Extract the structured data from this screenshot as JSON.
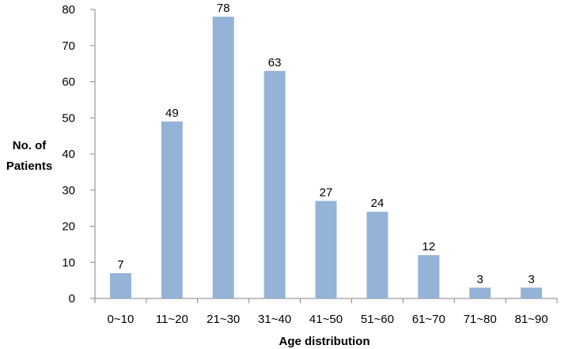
{
  "chart_data": {
    "type": "bar",
    "title": "",
    "xlabel": "Age distribution",
    "ylabel": "No. of Patients",
    "ylabel_lines": [
      "No. of",
      "Patients"
    ],
    "categories": [
      "0~10",
      "11~20",
      "21~30",
      "31~40",
      "41~50",
      "51~60",
      "61~70",
      "71~80",
      "81~90"
    ],
    "values": [
      7,
      49,
      78,
      63,
      27,
      24,
      12,
      3,
      3
    ],
    "ylim": [
      0,
      80
    ],
    "yticks": [
      0,
      10,
      20,
      30,
      40,
      50,
      60,
      70,
      80
    ],
    "data_labels": true,
    "grid": false,
    "legend": "none",
    "bar_color": "#95B3D7",
    "axis_color": "#868686"
  }
}
